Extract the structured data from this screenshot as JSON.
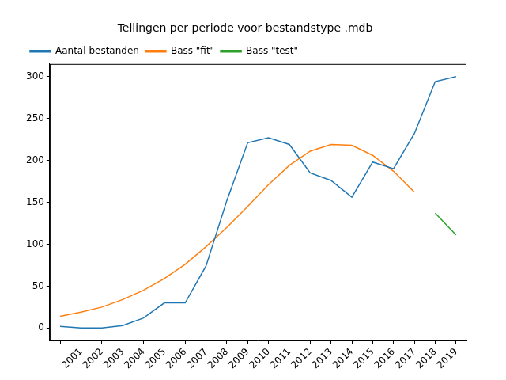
{
  "chart_data": {
    "type": "line",
    "title": "Tellingen per periode voor bestandstype .mdb",
    "categories": [
      null,
      "2001",
      "2002",
      "2003",
      "2004",
      "2005",
      "2006",
      "2007",
      "2008",
      "2009",
      "2010",
      "2011",
      "2012",
      "2013",
      "2014",
      "2015",
      "2016",
      "2017",
      "2018",
      "2019"
    ],
    "series": [
      {
        "name": "Aantal bestanden",
        "color": "#1f77b4",
        "values": [
          2,
          0,
          0,
          3,
          12,
          30,
          30,
          74,
          152,
          221,
          227,
          219,
          185,
          176,
          156,
          198,
          190,
          232,
          294,
          300
        ]
      },
      {
        "name": "Bass \"fit\"",
        "color": "#ff7f0e",
        "values": [
          14,
          19,
          25,
          34,
          45,
          59,
          76,
          97,
          120,
          145,
          171,
          194,
          211,
          219,
          218,
          206,
          187,
          162,
          null,
          null
        ]
      },
      {
        "name": "Bass \"test\"",
        "color": "#2ca02c",
        "values": [
          null,
          null,
          null,
          null,
          null,
          null,
          null,
          null,
          null,
          null,
          null,
          null,
          null,
          null,
          null,
          null,
          null,
          null,
          137,
          111
        ]
      }
    ],
    "ylim": [
      -15,
      315
    ],
    "yticks": [
      0,
      50,
      100,
      150,
      200,
      250,
      300
    ],
    "grid": false,
    "legend": "upper left"
  }
}
